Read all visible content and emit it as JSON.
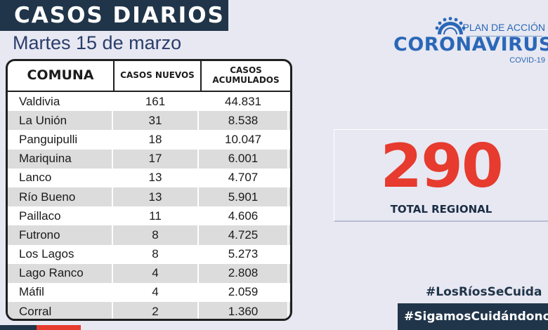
{
  "header": {
    "title": "CASOS DIARIOS",
    "date": "Martes 15 de marzo"
  },
  "logo": {
    "plan": "PLAN DE ACCIÓN",
    "name": "CORONAVIRUS",
    "sub": "COVID-19",
    "icon": "virus-sun-icon"
  },
  "table": {
    "headers": [
      "COMUNA",
      "CASOS NUEVOS",
      "CASOS ACUMULADOS"
    ],
    "rows": [
      {
        "comuna": "Valdivia",
        "nuevos": "161",
        "acumulados": "44.831"
      },
      {
        "comuna": "La Unión",
        "nuevos": "31",
        "acumulados": "8.538"
      },
      {
        "comuna": "Panguipulli",
        "nuevos": "18",
        "acumulados": "10.047"
      },
      {
        "comuna": "Mariquina",
        "nuevos": "17",
        "acumulados": "6.001"
      },
      {
        "comuna": "Lanco",
        "nuevos": "13",
        "acumulados": "4.707"
      },
      {
        "comuna": "Río Bueno",
        "nuevos": "13",
        "acumulados": "5.901"
      },
      {
        "comuna": "Paillaco",
        "nuevos": "11",
        "acumulados": "4.606"
      },
      {
        "comuna": "Futrono",
        "nuevos": "8",
        "acumulados": "4.725"
      },
      {
        "comuna": "Los Lagos",
        "nuevos": "8",
        "acumulados": "5.273"
      },
      {
        "comuna": "Lago Ranco",
        "nuevos": "4",
        "acumulados": "2.808"
      },
      {
        "comuna": "Máfil",
        "nuevos": "4",
        "acumulados": "2.059"
      },
      {
        "comuna": "Corral",
        "nuevos": "2",
        "acumulados": "1.360"
      }
    ]
  },
  "total": {
    "value": "290",
    "label": "TOTAL REGIONAL"
  },
  "hashtags": [
    "#LosRíosSeCuida",
    "#SigamosCuidándonos"
  ],
  "colors": {
    "navy": "#203549",
    "red": "#e63b2e",
    "blue": "#2b67b7",
    "background": "#e7e8f2"
  }
}
